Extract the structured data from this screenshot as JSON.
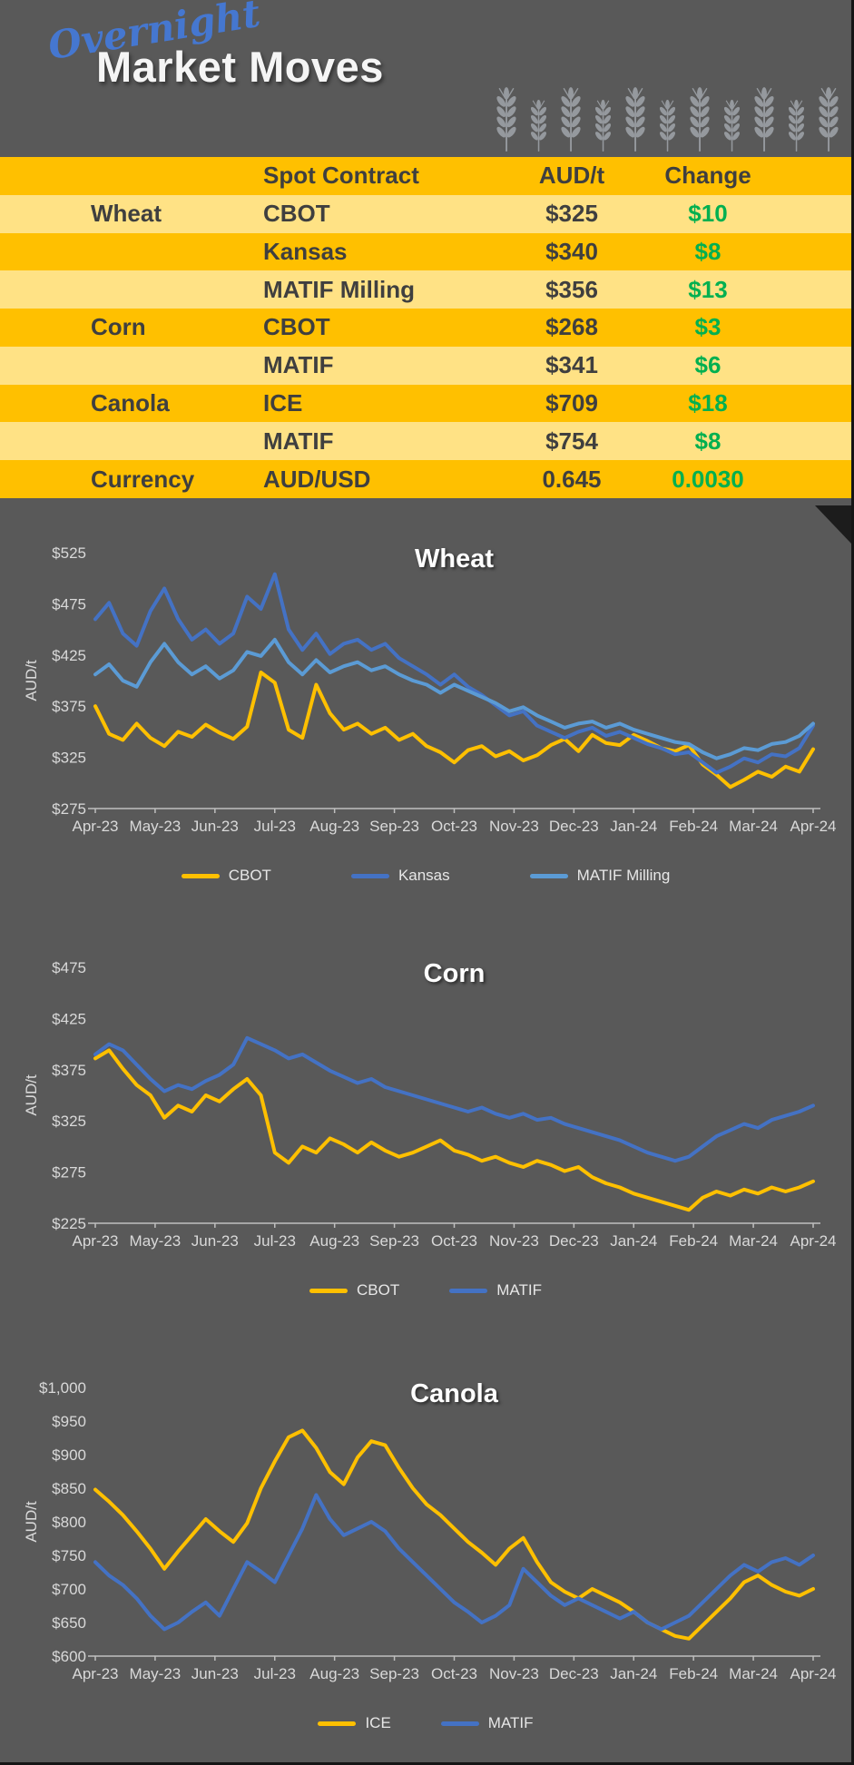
{
  "page": {
    "background": "#595959"
  },
  "header": {
    "script_title": "Overnight",
    "main_title": "Market Moves",
    "accent_color": "#4577D0",
    "wheat_icon_count": 11,
    "wheat_icon_color": "#95999E"
  },
  "table": {
    "gold_color": "#FFC000",
    "light_color": "#FFE285",
    "text_color": "#3F3F3F",
    "change_color": "#00B050",
    "columns": [
      "",
      "Spot Contract",
      "AUD/t",
      "Change"
    ],
    "rows": [
      {
        "commodity": "Wheat",
        "contract": "CBOT",
        "price": "$325",
        "change": "$10",
        "shade": "light"
      },
      {
        "commodity": "",
        "contract": "Kansas",
        "price": "$340",
        "change": "$8",
        "shade": "gold"
      },
      {
        "commodity": "",
        "contract": "MATIF Milling",
        "price": "$356",
        "change": "$13",
        "shade": "light"
      },
      {
        "commodity": "Corn",
        "contract": "CBOT",
        "price": "$268",
        "change": "$3",
        "shade": "gold"
      },
      {
        "commodity": "",
        "contract": "MATIF",
        "price": "$341",
        "change": "$6",
        "shade": "light"
      },
      {
        "commodity": "Canola",
        "contract": "ICE",
        "price": "$709",
        "change": "$18",
        "shade": "gold"
      },
      {
        "commodity": "",
        "contract": "MATIF",
        "price": "$754",
        "change": "$8",
        "shade": "light"
      },
      {
        "commodity": "Currency",
        "contract": "AUD/USD",
        "price": "0.645",
        "change": "0.0030",
        "shade": "gold"
      }
    ]
  },
  "chart_data": [
    {
      "id": "wheat",
      "type": "line",
      "title": "Wheat",
      "ylabel": "AUD/t",
      "ylim": [
        275,
        525
      ],
      "yticks": [
        275,
        325,
        375,
        425,
        475,
        525
      ],
      "ytick_labels": [
        "$275",
        "$325",
        "$375",
        "$425",
        "$475",
        "$525"
      ],
      "x_labels": [
        "Apr-23",
        "May-23",
        "Jun-23",
        "Jul-23",
        "Aug-23",
        "Sep-23",
        "Oct-23",
        "Nov-23",
        "Dec-23",
        "Jan-24",
        "Feb-24",
        "Mar-24",
        "Apr-24"
      ],
      "grid": false,
      "legend_position": "bottom",
      "series": [
        {
          "name": "CBOT",
          "color": "#FFC000",
          "values": [
            375,
            348,
            342,
            358,
            344,
            336,
            350,
            345,
            357,
            349,
            343,
            355,
            408,
            398,
            352,
            344,
            396,
            368,
            352,
            358,
            348,
            354,
            342,
            348,
            336,
            330,
            320,
            332,
            336,
            326,
            331,
            322,
            327,
            337,
            343,
            331,
            347,
            339,
            337,
            347,
            341,
            334,
            331,
            337,
            318,
            308,
            296,
            303,
            311,
            306,
            316,
            311,
            333
          ]
        },
        {
          "name": "Kansas",
          "color": "#4472C4",
          "values": [
            460,
            476,
            446,
            434,
            468,
            490,
            460,
            440,
            450,
            436,
            446,
            482,
            470,
            504,
            450,
            430,
            446,
            426,
            436,
            440,
            430,
            436,
            422,
            414,
            406,
            396,
            406,
            394,
            386,
            376,
            366,
            370,
            356,
            350,
            344,
            350,
            354,
            346,
            350,
            344,
            338,
            334,
            328,
            330,
            320,
            310,
            316,
            324,
            320,
            328,
            326,
            334,
            356
          ]
        },
        {
          "name": "MATIF Milling",
          "color": "#5B9BD5",
          "values": [
            406,
            416,
            400,
            394,
            418,
            436,
            418,
            406,
            414,
            402,
            410,
            428,
            424,
            440,
            418,
            406,
            420,
            408,
            414,
            418,
            410,
            414,
            406,
            400,
            396,
            388,
            396,
            390,
            384,
            378,
            370,
            374,
            366,
            360,
            354,
            358,
            360,
            354,
            358,
            352,
            348,
            344,
            340,
            338,
            330,
            324,
            328,
            334,
            332,
            338,
            340,
            346,
            358
          ]
        }
      ]
    },
    {
      "id": "corn",
      "type": "line",
      "title": "Corn",
      "ylabel": "AUD/t",
      "ylim": [
        225,
        475
      ],
      "yticks": [
        225,
        275,
        325,
        375,
        425,
        475
      ],
      "ytick_labels": [
        "$225",
        "$275",
        "$325",
        "$375",
        "$425",
        "$475"
      ],
      "x_labels": [
        "Apr-23",
        "May-23",
        "Jun-23",
        "Jul-23",
        "Aug-23",
        "Sep-23",
        "Oct-23",
        "Nov-23",
        "Dec-23",
        "Jan-24",
        "Feb-24",
        "Mar-24",
        "Apr-24"
      ],
      "grid": false,
      "legend_position": "bottom",
      "series": [
        {
          "name": "CBOT",
          "color": "#FFC000",
          "values": [
            386,
            394,
            376,
            360,
            350,
            328,
            340,
            334,
            350,
            344,
            356,
            366,
            350,
            294,
            284,
            300,
            294,
            308,
            302,
            294,
            304,
            296,
            290,
            294,
            300,
            306,
            296,
            292,
            286,
            290,
            284,
            280,
            286,
            282,
            276,
            280,
            270,
            264,
            260,
            254,
            250,
            246,
            242,
            238,
            250,
            256,
            252,
            258,
            254,
            260,
            256,
            260,
            266
          ]
        },
        {
          "name": "MATIF",
          "color": "#4472C4",
          "values": [
            390,
            400,
            394,
            380,
            366,
            354,
            360,
            356,
            364,
            370,
            380,
            406,
            400,
            394,
            386,
            390,
            382,
            374,
            368,
            362,
            366,
            358,
            354,
            350,
            346,
            342,
            338,
            334,
            338,
            332,
            328,
            332,
            326,
            328,
            322,
            318,
            314,
            310,
            306,
            300,
            294,
            290,
            286,
            290,
            300,
            310,
            316,
            322,
            318,
            326,
            330,
            334,
            340
          ]
        }
      ]
    },
    {
      "id": "canola",
      "type": "line",
      "title": "Canola",
      "ylabel": "AUD/t",
      "ylim": [
        600,
        1000
      ],
      "yticks": [
        600,
        650,
        700,
        750,
        800,
        850,
        900,
        950,
        1000
      ],
      "ytick_labels": [
        "$600",
        "$650",
        "$700",
        "$750",
        "$800",
        "$850",
        "$900",
        "$950",
        "$1,000"
      ],
      "x_labels": [
        "Apr-23",
        "May-23",
        "Jun-23",
        "Jul-23",
        "Aug-23",
        "Sep-23",
        "Oct-23",
        "Nov-23",
        "Dec-23",
        "Jan-24",
        "Feb-24",
        "Mar-24",
        "Apr-24"
      ],
      "grid": false,
      "legend_position": "bottom",
      "series": [
        {
          "name": "ICE",
          "color": "#FFC000",
          "values": [
            848,
            830,
            810,
            786,
            760,
            730,
            756,
            780,
            804,
            786,
            770,
            798,
            850,
            890,
            926,
            936,
            910,
            874,
            856,
            896,
            920,
            914,
            880,
            850,
            826,
            810,
            790,
            770,
            754,
            736,
            760,
            776,
            740,
            710,
            696,
            686,
            700,
            690,
            680,
            666,
            650,
            640,
            630,
            626,
            646,
            666,
            686,
            710,
            720,
            706,
            696,
            690,
            700
          ]
        },
        {
          "name": "MATIF",
          "color": "#4472C4",
          "values": [
            740,
            720,
            706,
            686,
            660,
            640,
            650,
            666,
            680,
            660,
            700,
            740,
            726,
            710,
            750,
            790,
            840,
            804,
            780,
            790,
            800,
            786,
            760,
            740,
            720,
            700,
            680,
            666,
            650,
            660,
            676,
            730,
            710,
            690,
            676,
            686,
            676,
            666,
            656,
            666,
            650,
            640,
            650,
            660,
            680,
            700,
            720,
            736,
            726,
            740,
            746,
            736,
            750
          ]
        }
      ]
    }
  ]
}
